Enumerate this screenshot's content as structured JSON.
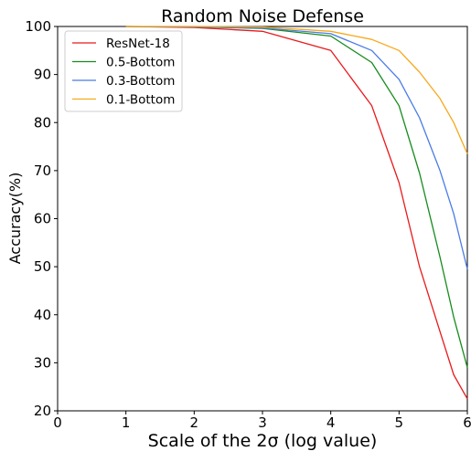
{
  "chart_data": {
    "type": "line",
    "title": "Random Noise Defense",
    "xlabel": "Scale of the 2σ (log value)",
    "ylabel": "Accuracy(%)",
    "xlim": [
      0,
      6
    ],
    "ylim": [
      20,
      100
    ],
    "xticks": [
      0,
      1,
      2,
      3,
      4,
      5,
      6
    ],
    "yticks": [
      20,
      30,
      40,
      50,
      60,
      70,
      80,
      90,
      100
    ],
    "grid": false,
    "legend_position": "top-left",
    "series": [
      {
        "name": "ResNet-18",
        "color": "#e8191b",
        "x": [
          1,
          2,
          3,
          4,
          4.6,
          5,
          5.3,
          5.6,
          5.8,
          6
        ],
        "y": [
          100,
          99.8,
          99,
          95,
          83.5,
          67.5,
          50,
          36.5,
          27.5,
          22.5
        ]
      },
      {
        "name": "0.5-Bottom",
        "color": "#168b1c",
        "x": [
          1,
          2,
          3,
          4,
          4.6,
          5,
          5.3,
          5.6,
          5.8,
          6
        ],
        "y": [
          100,
          99.9,
          99.6,
          98,
          92.5,
          83.5,
          69.5,
          52,
          39.5,
          29
        ]
      },
      {
        "name": "0.3-Bottom",
        "color": "#4b7be8",
        "x": [
          1,
          2,
          3,
          4,
          4.6,
          5,
          5.3,
          5.6,
          5.8,
          6
        ],
        "y": [
          100,
          99.9,
          99.7,
          98.5,
          95,
          89,
          81,
          70,
          61,
          49.5
        ]
      },
      {
        "name": "0.1-Bottom",
        "color": "#f6a81a",
        "x": [
          1,
          2,
          3,
          4,
          4.6,
          5,
          5.3,
          5.6,
          5.8,
          6
        ],
        "y": [
          100,
          100,
          99.9,
          99,
          97.3,
          95,
          90.5,
          85,
          80,
          73.5
        ]
      }
    ]
  }
}
